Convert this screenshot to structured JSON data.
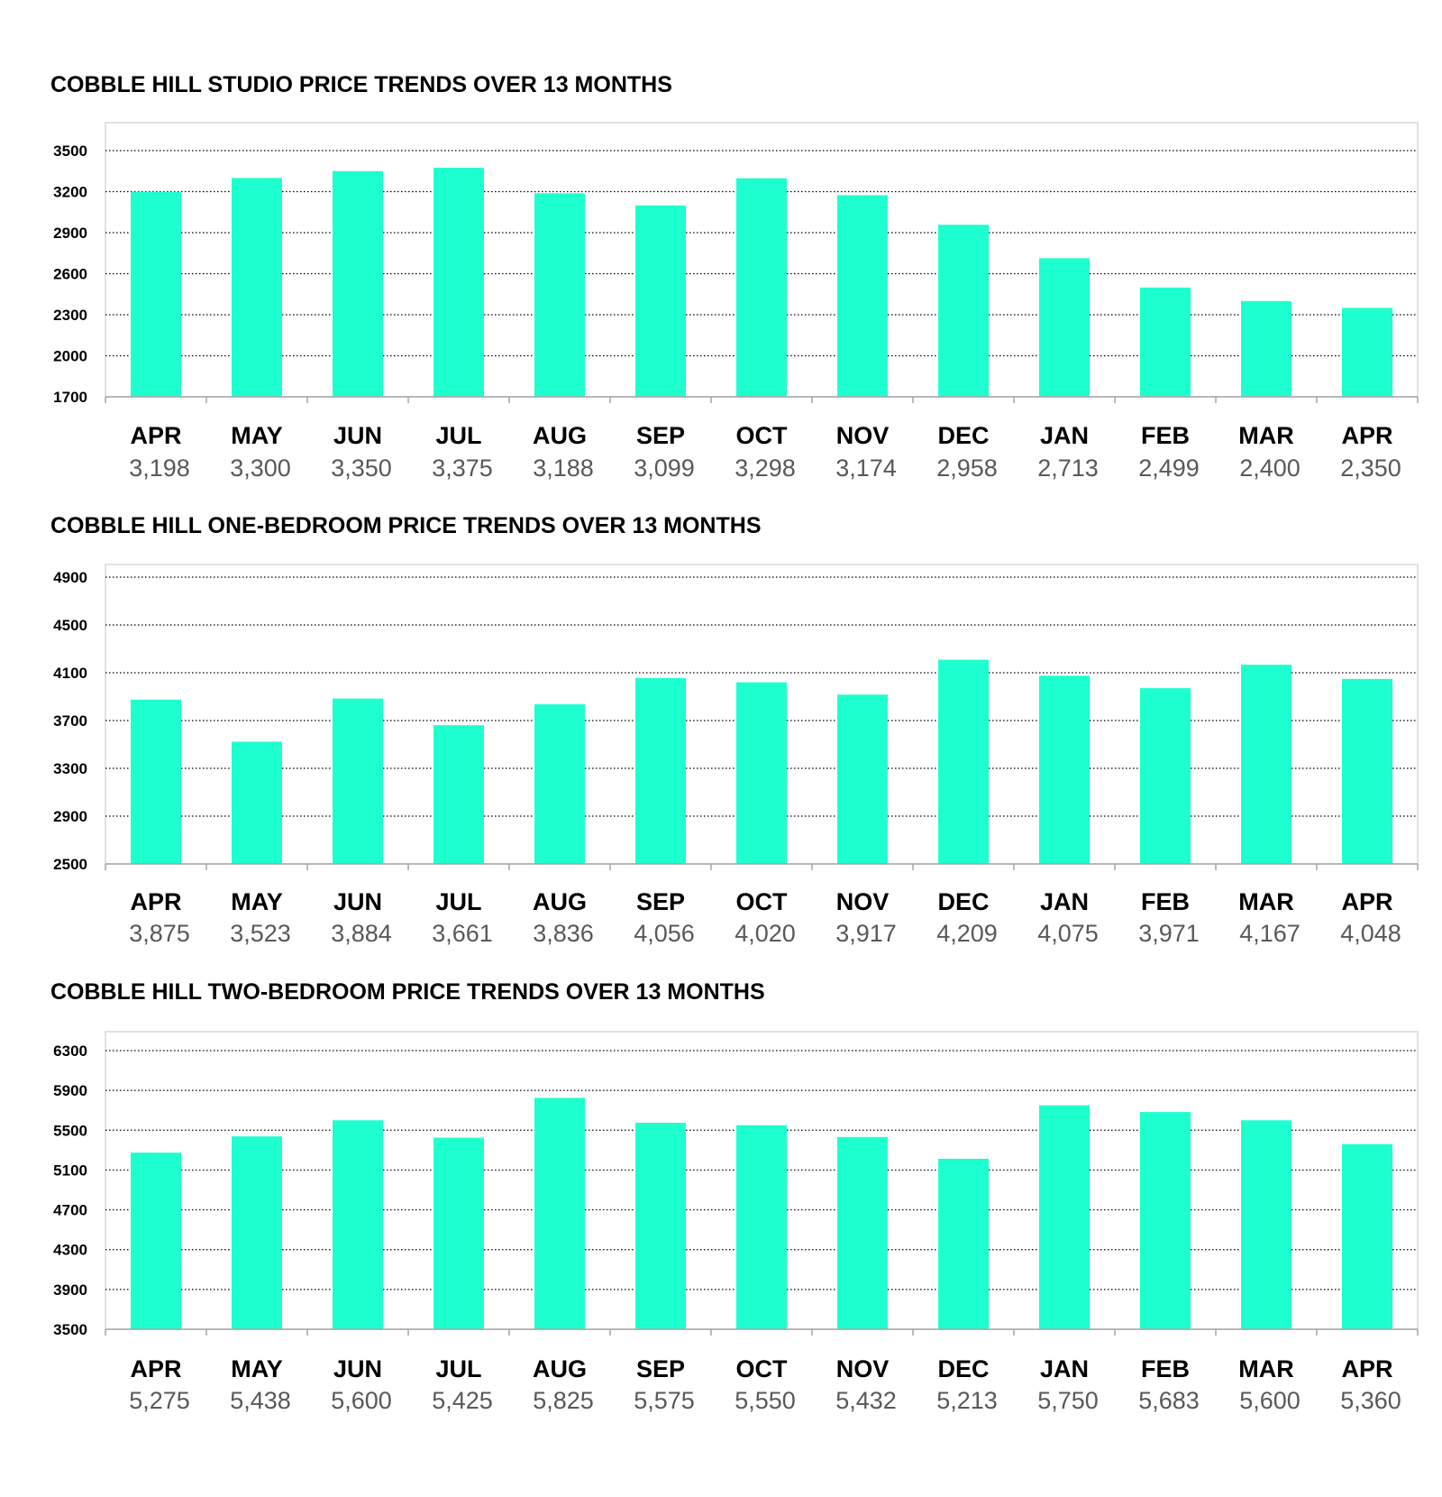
{
  "colors": {
    "bar": "#1effcf",
    "gridline": "#000000",
    "frame": "#d9d9d9",
    "value_text": "#595959"
  },
  "chart_data": [
    {
      "type": "bar",
      "title": "COBBLE HILL STUDIO PRICE TRENDS OVER 13 MONTHS",
      "xlabel": "",
      "ylabel": "",
      "categories": [
        "APR",
        "MAY",
        "JUN",
        "JUL",
        "AUG",
        "SEP",
        "OCT",
        "NOV",
        "DEC",
        "JAN",
        "FEB",
        "MAR",
        "APR"
      ],
      "values": [
        3198,
        3300,
        3350,
        3375,
        3188,
        3099,
        3298,
        3174,
        2958,
        2713,
        2499,
        2400,
        2350
      ],
      "value_labels": [
        "3,198",
        "3,300",
        "3,350",
        "3,375",
        "3,188",
        "3,099",
        "3,298",
        "3,174",
        "2,958",
        "2,713",
        "2,499",
        "2,400",
        "2,350"
      ],
      "ylim": [
        1700,
        3500
      ],
      "yticks": [
        1700,
        2000,
        2300,
        2600,
        2900,
        3200,
        3500
      ],
      "grid": "horizontal dotted",
      "legend": "none"
    },
    {
      "type": "bar",
      "title": "COBBLE HILL ONE-BEDROOM PRICE TRENDS OVER 13 MONTHS",
      "xlabel": "",
      "ylabel": "",
      "categories": [
        "APR",
        "MAY",
        "JUN",
        "JUL",
        "AUG",
        "SEP",
        "OCT",
        "NOV",
        "DEC",
        "JAN",
        "FEB",
        "MAR",
        "APR"
      ],
      "values": [
        3875,
        3523,
        3884,
        3661,
        3836,
        4056,
        4020,
        3917,
        4209,
        4075,
        3971,
        4167,
        4048
      ],
      "value_labels": [
        "3,875",
        "3,523",
        "3,884",
        "3,661",
        "3,836",
        "4,056",
        "4,020",
        "3,917",
        "4,209",
        "4,075",
        "3,971",
        "4,167",
        "4,048"
      ],
      "ylim": [
        2500,
        4900
      ],
      "yticks": [
        2500,
        2900,
        3300,
        3700,
        4100,
        4500,
        4900
      ],
      "grid": "horizontal dotted",
      "legend": "none"
    },
    {
      "type": "bar",
      "title": "COBBLE HILL TWO-BEDROOM PRICE TRENDS OVER 13 MONTHS",
      "xlabel": "",
      "ylabel": "",
      "categories": [
        "APR",
        "MAY",
        "JUN",
        "JUL",
        "AUG",
        "SEP",
        "OCT",
        "NOV",
        "DEC",
        "JAN",
        "FEB",
        "MAR",
        "APR"
      ],
      "values": [
        5275,
        5438,
        5600,
        5425,
        5825,
        5575,
        5550,
        5432,
        5213,
        5750,
        5683,
        5600,
        5360
      ],
      "value_labels": [
        "5,275",
        "5,438",
        "5,600",
        "5,425",
        "5,825",
        "5,575",
        "5,550",
        "5,432",
        "5,213",
        "5,750",
        "5,683",
        "5,600",
        "5,360"
      ],
      "ylim": [
        3500,
        6300
      ],
      "yticks": [
        3500,
        3900,
        4300,
        4700,
        5100,
        5500,
        5900,
        6300
      ],
      "grid": "horizontal dotted",
      "legend": "none"
    }
  ]
}
